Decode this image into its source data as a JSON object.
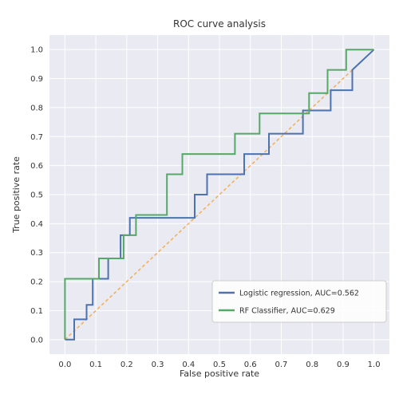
{
  "chart_data": {
    "type": "line",
    "title": "ROC curve analysis",
    "xlabel": "False positive rate",
    "ylabel": "True positive rate",
    "xlim": [
      -0.05,
      1.05
    ],
    "ylim": [
      -0.05,
      1.05
    ],
    "grid": true,
    "legend_position": "bottom-right",
    "x_ticks": [
      "0.0",
      "0.1",
      "0.2",
      "0.3",
      "0.4",
      "0.5",
      "0.6",
      "0.7",
      "0.8",
      "0.9",
      "1.0"
    ],
    "y_ticks": [
      "0.0",
      "0.1",
      "0.2",
      "0.3",
      "0.4",
      "0.5",
      "0.6",
      "0.7",
      "0.8",
      "0.9",
      "1.0"
    ],
    "colors": {
      "background": "#eaeaf2",
      "grid": "#ffffff",
      "logistic": "#4c72b0",
      "rf": "#55a868",
      "diagonal": "#f2b15c"
    },
    "series": [
      {
        "name": "Logistic regression, AUC=0.562",
        "color_key": "logistic",
        "x": [
          0.0,
          0.0,
          0.03,
          0.03,
          0.07,
          0.07,
          0.09,
          0.09,
          0.14,
          0.14,
          0.18,
          0.18,
          0.21,
          0.21,
          0.25,
          0.25,
          0.38,
          0.38,
          0.42,
          0.42,
          0.46,
          0.46,
          0.58,
          0.58,
          0.66,
          0.66,
          0.77,
          0.77,
          0.86,
          0.86,
          0.93,
          0.93,
          1.0
        ],
        "y": [
          0.0,
          0.0,
          0.0,
          0.07,
          0.07,
          0.12,
          0.12,
          0.21,
          0.21,
          0.28,
          0.28,
          0.36,
          0.36,
          0.42,
          0.42,
          0.42,
          0.42,
          0.42,
          0.42,
          0.5,
          0.5,
          0.57,
          0.57,
          0.64,
          0.64,
          0.71,
          0.71,
          0.79,
          0.79,
          0.86,
          0.86,
          0.93,
          1.0
        ]
      },
      {
        "name": "RF Classifier, AUC=0.629",
        "color_key": "rf",
        "x": [
          0.0,
          0.0,
          0.11,
          0.11,
          0.19,
          0.19,
          0.23,
          0.23,
          0.33,
          0.33,
          0.38,
          0.38,
          0.55,
          0.55,
          0.63,
          0.63,
          0.71,
          0.71,
          0.79,
          0.79,
          0.85,
          0.85,
          0.91,
          0.91,
          1.0
        ],
        "y": [
          0.0,
          0.21,
          0.21,
          0.28,
          0.28,
          0.36,
          0.36,
          0.43,
          0.43,
          0.57,
          0.57,
          0.64,
          0.64,
          0.71,
          0.71,
          0.78,
          0.78,
          0.78,
          0.78,
          0.85,
          0.85,
          0.93,
          0.93,
          1.0,
          1.0
        ]
      },
      {
        "name": "",
        "color_key": "diagonal",
        "dashed": true,
        "x": [
          0.0,
          1.0
        ],
        "y": [
          0.0,
          1.0
        ]
      }
    ]
  }
}
